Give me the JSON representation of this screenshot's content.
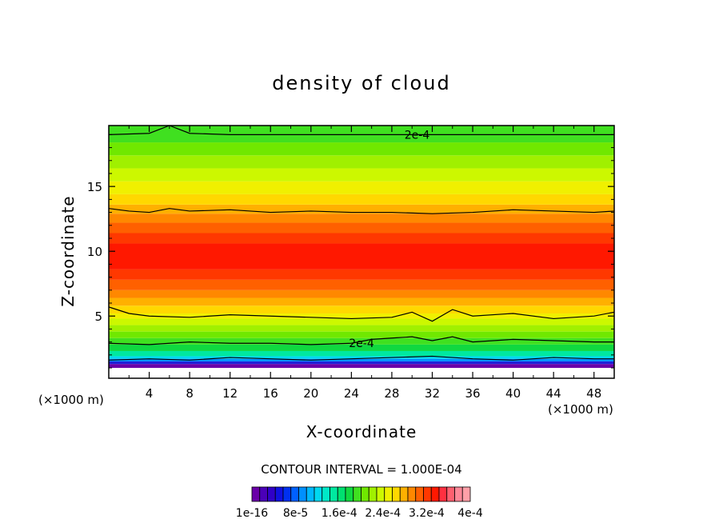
{
  "chart_data": {
    "type": "heatmap",
    "title": "density of cloud",
    "xlabel": "X-coordinate",
    "ylabel": "Z-coordinate",
    "x_unit_left": "(×1000 m)",
    "x_unit_right": "(×1000 m)",
    "xlim": [
      0,
      50
    ],
    "ylim": [
      0.2,
      19.7
    ],
    "x_ticks": [
      4,
      8,
      12,
      16,
      20,
      24,
      28,
      32,
      36,
      40,
      44,
      48
    ],
    "y_ticks": [
      5,
      10,
      15
    ],
    "contour_interval_text": "CONTOUR INTERVAL = 1.000E-04",
    "contour_labels": [
      {
        "text": "2e-4",
        "x": 30.5,
        "z": 19.0
      },
      {
        "text": "2e-4",
        "x": 25.0,
        "z": 2.9
      }
    ],
    "colorbar": {
      "tick_labels": [
        "1e-16",
        "8e-5",
        "1.6e-4",
        "2.4e-4",
        "3.2e-4",
        "4e-4"
      ],
      "colors": [
        "#6a00a8",
        "#4a00b8",
        "#3000c8",
        "#1010e0",
        "#0030f0",
        "#0060ff",
        "#0090ff",
        "#00b8ff",
        "#00d8f0",
        "#00e8c8",
        "#00e8a0",
        "#00e070",
        "#10d840",
        "#40e020",
        "#70e800",
        "#a0f000",
        "#ccf800",
        "#f0f000",
        "#ffd800",
        "#ffb000",
        "#ff8800",
        "#ff6000",
        "#ff3800",
        "#ff1800",
        "#ff3040",
        "#ff6070",
        "#ff8898",
        "#ffa0a8"
      ]
    },
    "bands": [
      {
        "z0": 0.2,
        "z1": 1.0,
        "color": "#ffffff"
      },
      {
        "z0": 1.0,
        "z1": 1.3,
        "color": "#6a00a8"
      },
      {
        "z0": 1.3,
        "z1": 1.5,
        "color": "#2020d8"
      },
      {
        "z0": 1.5,
        "z1": 1.7,
        "color": "#0090ff"
      },
      {
        "z0": 1.7,
        "z1": 1.9,
        "color": "#00d8f0"
      },
      {
        "z0": 1.9,
        "z1": 2.3,
        "color": "#00e8a0"
      },
      {
        "z0": 2.3,
        "z1": 2.8,
        "color": "#10d840"
      },
      {
        "z0": 2.8,
        "z1": 3.3,
        "color": "#40e020"
      },
      {
        "z0": 3.3,
        "z1": 3.8,
        "color": "#70e800"
      },
      {
        "z0": 3.8,
        "z1": 4.3,
        "color": "#a0f000"
      },
      {
        "z0": 4.3,
        "z1": 4.8,
        "color": "#ccf800"
      },
      {
        "z0": 4.8,
        "z1": 5.2,
        "color": "#f0f000"
      },
      {
        "z0": 5.2,
        "z1": 5.8,
        "color": "#ffd800"
      },
      {
        "z0": 5.8,
        "z1": 6.4,
        "color": "#ffb000"
      },
      {
        "z0": 6.4,
        "z1": 7.0,
        "color": "#ff8800"
      },
      {
        "z0": 7.0,
        "z1": 7.8,
        "color": "#ff6000"
      },
      {
        "z0": 7.8,
        "z1": 8.6,
        "color": "#ff3800"
      },
      {
        "z0": 8.6,
        "z1": 10.6,
        "color": "#ff1800"
      },
      {
        "z0": 10.6,
        "z1": 11.4,
        "color": "#ff3800"
      },
      {
        "z0": 11.4,
        "z1": 12.2,
        "color": "#ff6000"
      },
      {
        "z0": 12.2,
        "z1": 12.9,
        "color": "#ff8800"
      },
      {
        "z0": 12.9,
        "z1": 13.6,
        "color": "#ffb000"
      },
      {
        "z0": 13.6,
        "z1": 14.4,
        "color": "#ffd800"
      },
      {
        "z0": 14.4,
        "z1": 15.4,
        "color": "#f0f000"
      },
      {
        "z0": 15.4,
        "z1": 16.4,
        "color": "#ccf800"
      },
      {
        "z0": 16.4,
        "z1": 17.4,
        "color": "#a0f000"
      },
      {
        "z0": 17.4,
        "z1": 18.4,
        "color": "#70e800"
      },
      {
        "z0": 18.4,
        "z1": 19.7,
        "color": "#40e020"
      }
    ],
    "contour_lines": [
      {
        "x": [
          0,
          4,
          6,
          8,
          12,
          20,
          28,
          36,
          44,
          50
        ],
        "z": [
          19.0,
          19.1,
          19.7,
          19.1,
          19.0,
          19.0,
          19.0,
          19.0,
          19.0,
          19.0
        ]
      },
      {
        "x": [
          0,
          2,
          4,
          6,
          8,
          12,
          16,
          20,
          24,
          28,
          32,
          36,
          40,
          44,
          48,
          50
        ],
        "z": [
          13.3,
          13.1,
          13.0,
          13.3,
          13.1,
          13.2,
          13.0,
          13.1,
          13.0,
          13.0,
          12.9,
          13.0,
          13.2,
          13.1,
          13.0,
          13.1
        ]
      },
      {
        "x": [
          0,
          2,
          4,
          8,
          12,
          16,
          20,
          24,
          28,
          30,
          32,
          34,
          36,
          40,
          44,
          48,
          50
        ],
        "z": [
          5.7,
          5.2,
          5.0,
          4.9,
          5.1,
          5.0,
          4.9,
          4.8,
          4.9,
          5.3,
          4.6,
          5.5,
          5.0,
          5.2,
          4.8,
          5.0,
          5.3
        ]
      },
      {
        "x": [
          0,
          4,
          8,
          12,
          16,
          20,
          24,
          26,
          28,
          30,
          32,
          34,
          36,
          40,
          44,
          48,
          50
        ],
        "z": [
          2.9,
          2.8,
          3.0,
          2.9,
          2.9,
          2.8,
          2.9,
          3.2,
          3.3,
          3.4,
          3.1,
          3.4,
          3.0,
          3.2,
          3.1,
          3.0,
          3.0
        ]
      },
      {
        "x": [
          0,
          4,
          8,
          12,
          16,
          20,
          24,
          28,
          32,
          36,
          40,
          44,
          48,
          50
        ],
        "z": [
          1.6,
          1.7,
          1.6,
          1.8,
          1.7,
          1.6,
          1.7,
          1.8,
          1.9,
          1.7,
          1.6,
          1.8,
          1.7,
          1.7
        ]
      }
    ]
  }
}
